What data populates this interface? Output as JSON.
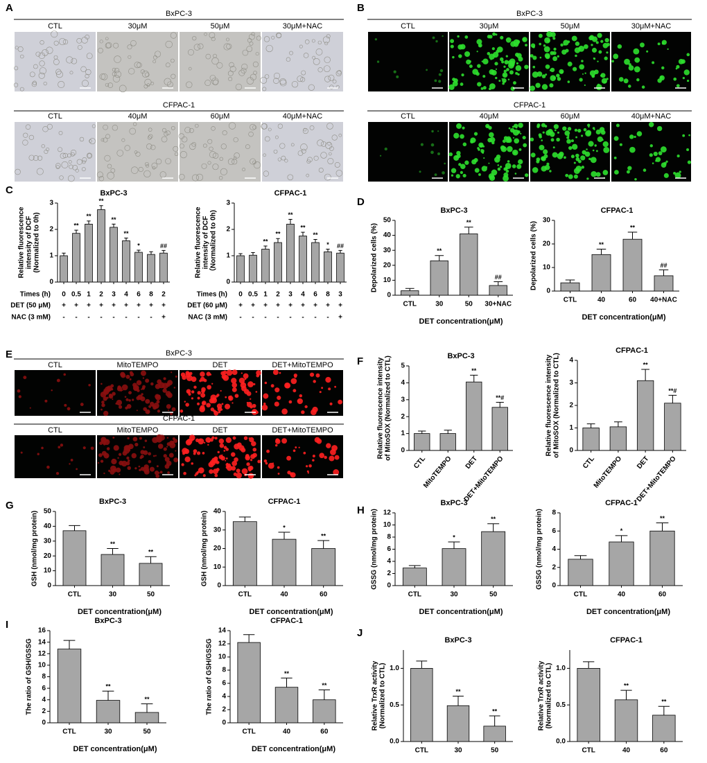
{
  "image_panels": [
    {
      "panel": "A",
      "groups": [
        {
          "cell_line": "BxPC-3",
          "conditions": [
            "CTL",
            "30μM",
            "50μM",
            "30μM+NAC"
          ]
        },
        {
          "cell_line": "CFPAC-1",
          "conditions": [
            "CTL",
            "40μM",
            "60μM",
            "40μM+NAC"
          ]
        }
      ]
    },
    {
      "panel": "B",
      "groups": [
        {
          "cell_line": "BxPC-3",
          "conditions": [
            "CTL",
            "30μM",
            "50μM",
            "30μM+NAC"
          ]
        },
        {
          "cell_line": "CFPAC-1",
          "conditions": [
            "CTL",
            "40μM",
            "60μM",
            "40μM+NAC"
          ]
        }
      ]
    },
    {
      "panel": "E",
      "groups": [
        {
          "cell_line": "BxPC-3",
          "conditions": [
            "CTL",
            "MitoTEMPO",
            "DET",
            "DET+MitoTEMPO"
          ]
        },
        {
          "cell_line": "CFPAC-1",
          "conditions": [
            "CTL",
            "MitoTEMPO",
            "DET",
            "DET+MitoTEMPO"
          ]
        }
      ]
    }
  ],
  "chart_data": [
    {
      "type": "bar",
      "panel": "C",
      "title": "BxPC-3",
      "ylabel": [
        "Relative fluorescence",
        "intensity of DCF",
        "(Normalized to 0h)"
      ],
      "x_label": "Times (h)",
      "categories": [
        "0",
        "0.5",
        "1",
        "2",
        "3",
        "4",
        "6",
        "8",
        "2"
      ],
      "rows": [
        {
          "label": "DET (50 μM)",
          "cells": [
            "+",
            "+",
            "+",
            "+",
            "+",
            "+",
            "+",
            "+",
            "+"
          ]
        },
        {
          "label": "NAC (3 mM)",
          "cells": [
            "-",
            "-",
            "-",
            "-",
            "-",
            "-",
            "-",
            "-",
            "+"
          ]
        }
      ],
      "values": [
        1.0,
        1.85,
        2.2,
        2.75,
        2.08,
        1.57,
        1.13,
        1.05,
        1.1
      ],
      "errors": [
        0.1,
        0.12,
        0.12,
        0.15,
        0.12,
        0.1,
        0.08,
        0.1,
        0.1
      ],
      "annotations": [
        null,
        "**",
        "**",
        "**",
        "**",
        "**",
        "*",
        null,
        "##"
      ],
      "ylim": [
        0,
        3
      ],
      "yticks": [
        0,
        1,
        2,
        3
      ],
      "color": "#a6a6a6"
    },
    {
      "type": "bar",
      "title": "CFPAC-1",
      "ylabel": [
        "Relative fluorescence",
        "intensity of DCF",
        "（Normalized to 0h)"
      ],
      "x_label": "Times (h)",
      "categories": [
        "0",
        "0.5",
        "1",
        "2",
        "3",
        "4",
        "6",
        "8",
        "3"
      ],
      "rows": [
        {
          "label": "DET (60 μM)",
          "cells": [
            "+",
            "+",
            "+",
            "+",
            "+",
            "+",
            "+",
            "+",
            "+"
          ]
        },
        {
          "label": "NAC (3 mM)",
          "cells": [
            "-",
            "-",
            "-",
            "-",
            "-",
            "-",
            "-",
            "-",
            "+"
          ]
        }
      ],
      "values": [
        1.0,
        1.02,
        1.25,
        1.5,
        2.2,
        1.75,
        1.5,
        1.15,
        1.1
      ],
      "errors": [
        0.08,
        0.1,
        0.12,
        0.15,
        0.18,
        0.14,
        0.12,
        0.1,
        0.1
      ],
      "annotations": [
        null,
        null,
        "**",
        "**",
        "**",
        "**",
        "**",
        "*",
        "##"
      ],
      "ylim": [
        0,
        3
      ],
      "yticks": [
        0,
        1,
        2,
        3
      ],
      "color": "#a6a6a6"
    },
    {
      "type": "bar",
      "panel": "D",
      "title": "BxPC-3",
      "ylabel": [
        "Depolarized cells (%)"
      ],
      "xlabel": "DET concentration(μM)",
      "categories": [
        "CTL",
        "30",
        "50",
        "30+NAC"
      ],
      "values": [
        3,
        23,
        41,
        6.5
      ],
      "errors": [
        1.5,
        3.5,
        4.5,
        2.5
      ],
      "annotations": [
        null,
        "**",
        "**",
        "##"
      ],
      "ylim": [
        0,
        50
      ],
      "yticks": [
        0,
        10,
        20,
        30,
        40,
        50
      ],
      "color": "#a6a6a6"
    },
    {
      "type": "bar",
      "title": "CFPAC-1",
      "ylabel": [
        "Depolarized cells (%)"
      ],
      "xlabel": "DET concentration(μM)",
      "categories": [
        "CTL",
        "40",
        "60",
        "40+NAC"
      ],
      "values": [
        3.5,
        15.5,
        22,
        6.5
      ],
      "errors": [
        1.2,
        2.3,
        3,
        2.5
      ],
      "annotations": [
        null,
        "**",
        "**",
        "##"
      ],
      "ylim": [
        0,
        30
      ],
      "yticks": [
        0,
        10,
        20,
        30
      ],
      "color": "#a6a6a6"
    },
    {
      "type": "bar",
      "panel": "F",
      "title": "BxPC-3",
      "ylabel": [
        "Relative fluorescence intensity",
        "of MitoSOX (Normalized to CTL)"
      ],
      "rotate_labels": true,
      "categories": [
        "CTL",
        "MitoTEMPO",
        "DET",
        "DET+MitoTEMPO"
      ],
      "values": [
        1.0,
        1.0,
        4.05,
        2.55
      ],
      "errors": [
        0.15,
        0.2,
        0.4,
        0.3
      ],
      "annotations": [
        null,
        null,
        "**",
        "**#"
      ],
      "ylim": [
        0,
        5
      ],
      "yticks": [
        0,
        1,
        2,
        3,
        4,
        5
      ],
      "color": "#a6a6a6"
    },
    {
      "type": "bar",
      "title": "CFPAC-1",
      "ylabel": [
        "Relative fluorescence intensity",
        "of MitoSOX (Normalized to CTL)"
      ],
      "rotate_labels": true,
      "categories": [
        "CTL",
        "MitoTEMPO",
        "DET",
        "DET+MitoTEMPO"
      ],
      "values": [
        1.0,
        1.05,
        3.1,
        2.1
      ],
      "errors": [
        0.18,
        0.22,
        0.5,
        0.35
      ],
      "annotations": [
        null,
        null,
        "**",
        "**#"
      ],
      "ylim": [
        0,
        4
      ],
      "yticks": [
        0,
        1,
        2,
        3,
        4
      ],
      "color": "#a6a6a6"
    },
    {
      "type": "bar",
      "panel": "G",
      "title": "BxPC-3",
      "ylabel": [
        "GSH (nmol/mg protein)"
      ],
      "xlabel": "DET concentration(μM)",
      "categories": [
        "CTL",
        "30",
        "50"
      ],
      "values": [
        37,
        21,
        15
      ],
      "errors": [
        3.5,
        4,
        4.5
      ],
      "annotations": [
        null,
        "**",
        "**"
      ],
      "ylim": [
        0,
        50
      ],
      "yticks": [
        0,
        10,
        20,
        30,
        40,
        50
      ],
      "color": "#a6a6a6"
    },
    {
      "type": "bar",
      "title": "CFPAC-1",
      "ylabel": [
        "GSH (nmol/mg protein)"
      ],
      "xlabel": "DET concentration(μM)",
      "categories": [
        "CTL",
        "40",
        "60"
      ],
      "values": [
        34.5,
        25,
        20
      ],
      "errors": [
        2.5,
        3.8,
        4.3
      ],
      "annotations": [
        null,
        "*",
        "**"
      ],
      "ylim": [
        0,
        40
      ],
      "yticks": [
        0,
        10,
        20,
        30,
        40
      ],
      "color": "#a6a6a6"
    },
    {
      "type": "bar",
      "panel": "H",
      "title": "BxPC-3",
      "ylabel": [
        "GSSG (nmol/mg protein)"
      ],
      "xlabel": "DET concentration(μM)",
      "categories": [
        "CTL",
        "30",
        "50"
      ],
      "values": [
        2.9,
        6.1,
        8.9
      ],
      "errors": [
        0.4,
        1.1,
        1.3
      ],
      "annotations": [
        null,
        "*",
        "**"
      ],
      "ylim": [
        0,
        12
      ],
      "yticks": [
        0,
        2,
        4,
        6,
        8,
        10,
        12
      ],
      "color": "#a6a6a6"
    },
    {
      "type": "bar",
      "title": "CFPAC-1",
      "ylabel": [
        "GSSG (nmol/mg protein)"
      ],
      "xlabel": "DET concentration(μM)",
      "categories": [
        "CTL",
        "40",
        "60"
      ],
      "values": [
        2.9,
        4.8,
        6.0
      ],
      "errors": [
        0.4,
        0.7,
        0.9
      ],
      "annotations": [
        null,
        "*",
        "**"
      ],
      "ylim": [
        0,
        8
      ],
      "yticks": [
        0,
        2,
        4,
        6,
        8
      ],
      "color": "#a6a6a6"
    },
    {
      "type": "bar",
      "panel": "I",
      "title": "BxPC-3",
      "ylabel": [
        "The ratio of GSH/GSSG"
      ],
      "xlabel": "DET concentration(μM)",
      "categories": [
        "CTL",
        "30",
        "50"
      ],
      "values": [
        12.8,
        3.9,
        1.8
      ],
      "errors": [
        1.5,
        1.6,
        1.5
      ],
      "annotations": [
        null,
        "**",
        "**"
      ],
      "ylim": [
        0,
        16
      ],
      "yticks": [
        0,
        2,
        4,
        6,
        8,
        10,
        12,
        14,
        16
      ],
      "color": "#a6a6a6"
    },
    {
      "type": "bar",
      "title": "CFPAC-1",
      "ylabel": [
        "The ratio of GSH/GSSG"
      ],
      "xlabel": "DET concentration(μM)",
      "categories": [
        "CTL",
        "40",
        "60"
      ],
      "values": [
        12.2,
        5.4,
        3.5
      ],
      "errors": [
        1.2,
        1.4,
        1.5
      ],
      "annotations": [
        null,
        "**",
        "**"
      ],
      "ylim": [
        0,
        14
      ],
      "yticks": [
        0,
        2,
        4,
        6,
        8,
        10,
        12,
        14
      ],
      "color": "#a6a6a6"
    },
    {
      "type": "bar",
      "panel": "J",
      "title": "BxPC-3",
      "ylabel": [
        "Relative TrxR activity",
        "(Normalized to CTL)"
      ],
      "xlabel": "DET concentration(μM)",
      "categories": [
        "CTL",
        "30",
        "50"
      ],
      "values": [
        1.0,
        0.49,
        0.21
      ],
      "errors": [
        0.1,
        0.13,
        0.14
      ],
      "annotations": [
        null,
        "**",
        "**"
      ],
      "ylim": [
        0,
        1.25
      ],
      "yticks": [
        {
          "value": 0,
          "label": "0.0"
        },
        {
          "value": 0.5,
          "label": "0.5"
        },
        {
          "value": 1,
          "label": "1.0"
        }
      ],
      "color": "#a6a6a6"
    },
    {
      "type": "bar",
      "title": "CFPAC-1",
      "ylabel": [
        "Relative TrxR activity",
        "(Normalized to CTL)"
      ],
      "xlabel": "DET concentration(μM)",
      "categories": [
        "CTL",
        "40",
        "60"
      ],
      "values": [
        1.0,
        0.57,
        0.36
      ],
      "errors": [
        0.09,
        0.13,
        0.12
      ],
      "annotations": [
        null,
        "**",
        "**"
      ],
      "ylim": [
        0,
        1.25
      ],
      "yticks": [
        {
          "value": 0,
          "label": "0.0"
        },
        {
          "value": 0.5,
          "label": "0.5"
        },
        {
          "value": 1,
          "label": "1.0"
        }
      ],
      "color": "#a6a6a6"
    }
  ]
}
